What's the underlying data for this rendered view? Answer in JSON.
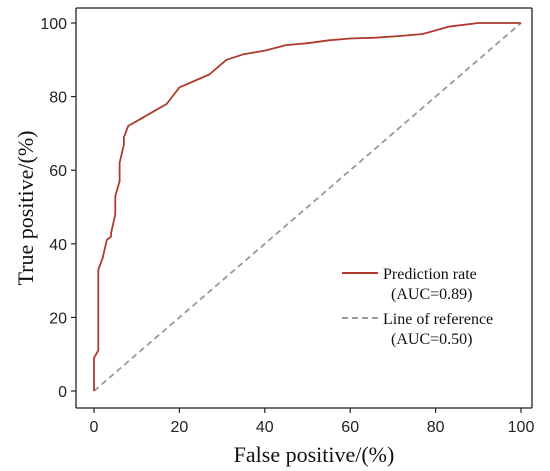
{
  "chart_data": {
    "type": "line",
    "xlabel": "False positive/(%)",
    "ylabel": "True positive/(%)",
    "xlim": [
      0,
      100
    ],
    "ylim": [
      0,
      100
    ],
    "xticks": [
      0,
      20,
      40,
      60,
      80,
      100
    ],
    "yticks": [
      0,
      20,
      40,
      60,
      80,
      100
    ],
    "grid": false,
    "legend_position": "bottom-right",
    "series": [
      {
        "name": "Prediction rate",
        "legend_sub": "(AUC=0.89)",
        "color": "#b03a2e",
        "style": "solid",
        "x": [
          0,
          0,
          1,
          1,
          1,
          1,
          2,
          3,
          4,
          4,
          5,
          5,
          6,
          6,
          7,
          7,
          8,
          11,
          14,
          17,
          20,
          24,
          27,
          29,
          31,
          35,
          40,
          45,
          50,
          55,
          60,
          66,
          72,
          77,
          83,
          90,
          100
        ],
        "y": [
          0,
          9,
          11,
          26,
          31,
          33,
          36,
          41,
          42,
          43,
          48,
          53,
          57,
          62,
          67,
          69,
          72,
          74,
          76,
          78,
          82.5,
          84.5,
          86,
          88,
          90,
          91.5,
          92.5,
          94,
          94.5,
          95.3,
          95.8,
          96,
          96.5,
          97,
          99,
          100,
          100
        ]
      },
      {
        "name": "Line of reference",
        "legend_sub": "(AUC=0.50)",
        "color": "#999999",
        "style": "dashed",
        "x": [
          0,
          100
        ],
        "y": [
          0,
          100
        ]
      }
    ]
  }
}
